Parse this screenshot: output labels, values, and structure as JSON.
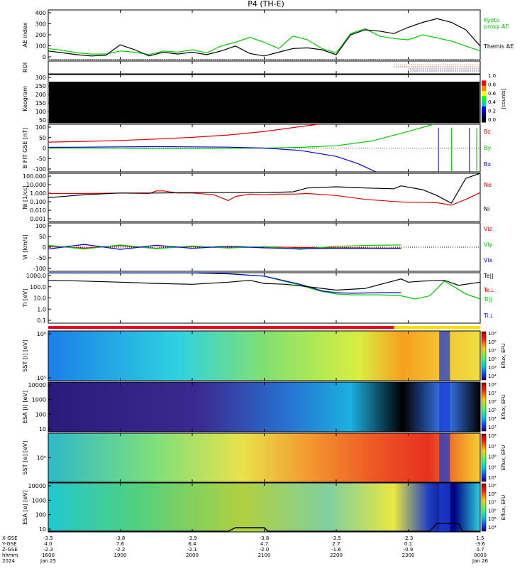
{
  "chart_data": {
    "type": "line",
    "title": "P4 (TH-E)",
    "x_tick_positions_data": [
      0,
      1,
      2,
      3,
      4,
      5,
      6
    ],
    "panels": [
      {
        "id": "ae",
        "ylabel": "AE index",
        "yticks": [
          "400",
          "300",
          "200",
          "100",
          "0"
        ],
        "ylim": [
          0,
          400
        ],
        "legend": [
          {
            "label": "Kyoto",
            "color": "#00cc00"
          },
          {
            "label": "proxy AE",
            "color": "#00cc00"
          },
          {
            "label": "Themis AE",
            "color": "#000000"
          }
        ],
        "series": [
          {
            "name": "Kyoto proxy AE",
            "color": "#00cc00",
            "x": [
              0,
              0.2,
              0.4,
              0.6,
              0.8,
              1.0,
              1.2,
              1.4,
              1.6,
              1.8,
              2.0,
              2.2,
              2.4,
              2.6,
              2.8,
              3.0,
              3.2,
              3.4,
              3.6,
              3.8,
              4.0,
              4.2,
              4.4,
              4.6,
              4.8,
              5.0,
              5.2,
              5.4,
              5.6,
              5.8,
              6.0
            ],
            "y": [
              90,
              75,
              55,
              45,
              45,
              70,
              60,
              40,
              70,
              60,
              80,
              55,
              110,
              140,
              180,
              140,
              90,
              190,
              160,
              90,
              55,
              210,
              250,
              190,
              170,
              160,
              200,
              175,
              150,
              110,
              70
            ]
          },
          {
            "name": "Themis AE",
            "color": "#000000",
            "x": [
              0,
              0.2,
              0.4,
              0.6,
              0.8,
              1.0,
              1.2,
              1.4,
              1.6,
              1.8,
              2.0,
              2.2,
              2.4,
              2.6,
              2.8,
              3.0,
              3.2,
              3.4,
              3.6,
              3.8,
              4.0,
              4.2,
              4.4,
              4.6,
              4.8,
              5.0,
              5.2,
              5.4,
              5.6,
              5.8,
              6.0
            ],
            "y": [
              70,
              55,
              40,
              30,
              35,
              120,
              80,
              30,
              60,
              45,
              60,
              40,
              70,
              110,
              50,
              30,
              60,
              90,
              95,
              80,
              40,
              200,
              240,
              230,
              210,
              260,
              300,
              330,
              300,
              240,
              110
            ]
          }
        ]
      },
      {
        "id": "roi",
        "ylabel": "ROI",
        "yticks": []
      },
      {
        "id": "keogram",
        "ylabel": "Keogram",
        "yticks": [
          "300",
          "250",
          "200",
          "150",
          "100",
          "50"
        ],
        "colorbar": {
          "label": "[counts]",
          "ticks": [
            "1.0",
            "0.8",
            "0.6",
            "0.4",
            "0.2",
            "0.0"
          ]
        }
      },
      {
        "id": "bfield",
        "ylabel": "B FIT GSE [nT]",
        "yticks": [
          "100",
          "50",
          "0",
          "-50",
          "-100"
        ],
        "ylim": [
          -100,
          100
        ],
        "legend": [
          {
            "label": "Bz",
            "color": "#dd0000"
          },
          {
            "label": "By",
            "color": "#00cc00"
          },
          {
            "label": "Bx",
            "color": "#0000cc"
          }
        ],
        "series": [
          {
            "name": "Bz",
            "color": "#dd0000",
            "x": [
              0,
              0.5,
              1.0,
              1.5,
              2.0,
              2.5,
              3.0,
              3.5,
              3.75
            ],
            "y": [
              25,
              28,
              32,
              38,
              45,
              55,
              70,
              90,
              100
            ]
          },
          {
            "name": "By",
            "color": "#00cc00",
            "x": [
              0,
              0.5,
              1.0,
              1.5,
              2.0,
              2.5,
              3.0,
              3.5,
              4.0,
              4.5,
              5.0,
              5.35
            ],
            "y": [
              0,
              0,
              -1,
              -2,
              -2,
              -1,
              0,
              3,
              10,
              30,
              70,
              100
            ]
          },
          {
            "name": "Bx",
            "color": "#0000cc",
            "x": [
              0,
              0.5,
              1.0,
              1.5,
              2.0,
              2.5,
              3.0,
              3.5,
              4.0,
              4.3,
              4.55
            ],
            "y": [
              3,
              4,
              5,
              6,
              5,
              4,
              0,
              -10,
              -35,
              -65,
              -100
            ]
          }
        ]
      },
      {
        "id": "density",
        "ylabel": "Ni [1/cc]",
        "yticks": [
          "100.000",
          "10.000",
          "1.000",
          "0.100",
          "0.010",
          "0.001"
        ],
        "ylim_log10": [
          -3,
          2
        ],
        "legend": [
          {
            "label": "Ne",
            "color": "#dd0000"
          },
          {
            "label": "Ni",
            "color": "#000000"
          }
        ],
        "series": [
          {
            "name": "Ne",
            "color": "#dd0000",
            "x": [
              0,
              0.5,
              1.0,
              1.4,
              1.5,
              1.6,
              1.8,
              2.0,
              2.3,
              2.4,
              2.5,
              2.6,
              2.8,
              3.0,
              3.2,
              3.4,
              3.6,
              4.0,
              4.4,
              4.8,
              5.0,
              5.2,
              5.4,
              5.6,
              5.8,
              6.0
            ],
            "y": [
              0.8,
              0.8,
              0.9,
              0.8,
              1.5,
              1.5,
              0.9,
              0.9,
              0.6,
              0.3,
              0.15,
              0.4,
              0.7,
              0.6,
              0.7,
              0.7,
              0.8,
              0.5,
              0.2,
              0.12,
              0.1,
              0.1,
              0.09,
              0.05,
              0.2,
              1.0
            ]
          },
          {
            "name": "Ni",
            "color": "#000000",
            "x": [
              0,
              0.5,
              1.0,
              1.5,
              2.0,
              2.5,
              3.0,
              3.4,
              3.6,
              4.0,
              4.4,
              4.8,
              4.9,
              5.2,
              5.4,
              5.6,
              5.8,
              6.0
            ],
            "y": [
              0.3,
              0.6,
              0.9,
              0.9,
              1.0,
              1.0,
              1.0,
              1.2,
              3.0,
              4.0,
              3.0,
              2.5,
              5.0,
              2.0,
              0.5,
              0.08,
              30,
              100
            ]
          }
        ]
      },
      {
        "id": "velocity",
        "ylabel": "Vi [km/s]",
        "yticks": [
          "100",
          "50",
          "0",
          "-50",
          "-100"
        ],
        "ylim": [
          -130,
          130
        ],
        "legend": [
          {
            "label": "Viz",
            "color": "#dd0000"
          },
          {
            "label": "Viy",
            "color": "#00cc00"
          },
          {
            "label": "Vix",
            "color": "#0000cc"
          }
        ],
        "series": [
          {
            "name": "Viz",
            "color": "#dd0000",
            "x": [
              0,
              0.5,
              1.0,
              1.5,
              2.0,
              2.5,
              3.0,
              3.5,
              4.0,
              4.5,
              4.9
            ],
            "y": [
              5,
              -5,
              8,
              -6,
              4,
              -3,
              2,
              -2,
              -3,
              -5,
              -5
            ]
          },
          {
            "name": "Viy",
            "color": "#00cc00",
            "x": [
              0,
              0.5,
              1.0,
              1.5,
              2.0,
              2.5,
              3.0,
              3.5,
              4.0,
              4.5,
              4.9
            ],
            "y": [
              10,
              -10,
              12,
              -8,
              6,
              -5,
              3,
              -12,
              5,
              10,
              12
            ]
          },
          {
            "name": "Vix",
            "color": "#0000cc",
            "x": [
              0,
              0.5,
              1.0,
              1.5,
              2.0,
              2.5,
              3.0,
              3.5,
              4.0,
              4.5,
              4.9
            ],
            "y": [
              -10,
              15,
              -12,
              10,
              -6,
              5,
              -4,
              -8,
              -6,
              -6,
              -7
            ]
          }
        ]
      },
      {
        "id": "temperature",
        "ylabel": "Ti [eV]",
        "yticks": [
          "1000.0",
          "100.0",
          "10.0",
          "1.0",
          "0.1"
        ],
        "ylim_log10": [
          -1.3,
          3.5
        ],
        "legend": [
          {
            "label": "Te||",
            "color": "#000000"
          },
          {
            "label": "Te⊥",
            "color": "#dd0000"
          },
          {
            "label": "Ti||",
            "color": "#00cc00"
          },
          {
            "label": "Ti⊥",
            "color": "#0000cc"
          }
        ],
        "series": [
          {
            "name": "Ti||",
            "color": "#00cc00",
            "x": [
              0,
              0.5,
              1.0,
              1.5,
              2.0,
              2.5,
              3.0,
              3.5,
              3.8,
              4.0,
              4.2,
              4.6,
              4.9,
              5.1,
              5.3,
              5.5,
              5.6,
              5.8,
              6.0
            ],
            "y": [
              3000,
              3000,
              3000,
              3000,
              3000,
              2500,
              1500,
              200,
              50,
              30,
              25,
              25,
              20,
              10,
              20,
              500,
              200,
              30,
              10
            ]
          },
          {
            "name": "Ti⊥",
            "color": "#0000cc",
            "x": [
              0,
              0.5,
              1.0,
              1.5,
              2.0,
              2.5,
              3.0,
              3.5,
              3.8,
              4.0,
              4.2,
              4.6,
              4.9
            ],
            "y": [
              3000,
              3000,
              3000,
              3000,
              3000,
              2500,
              1500,
              250,
              60,
              40,
              35,
              40,
              40
            ]
          },
          {
            "name": "Te||",
            "color": "#000000",
            "x": [
              0,
              0.5,
              1.0,
              1.5,
              2.0,
              2.5,
              2.8,
              3.0,
              3.3,
              3.6,
              4.0,
              4.4,
              4.9,
              5.0,
              5.2,
              5.5,
              5.7,
              6.0
            ],
            "y": [
              600,
              500,
              400,
              300,
              250,
              400,
              600,
              300,
              250,
              150,
              70,
              100,
              800,
              400,
              500,
              600,
              200,
              400
            ]
          }
        ]
      },
      {
        "id": "sst_i",
        "ylabel": "SST [i] [eV]",
        "yticks": [
          "10⁶",
          "10⁵"
        ],
        "colorbar": {
          "label": "Eflux, EFU",
          "ticks": [
            "10⁹",
            "10⁸",
            "10⁷",
            "10⁶",
            "10⁵",
            "10⁴"
          ]
        }
      },
      {
        "id": "esa_i",
        "ylabel": "ESA [i] [eV]",
        "yticks": [
          "10000",
          "1000",
          "100",
          "10"
        ],
        "colorbar": {
          "label": "Eflux, EFU",
          "ticks": [
            "10⁸",
            "10⁷",
            "10⁶",
            "10⁵",
            "10⁴",
            "10³"
          ]
        }
      },
      {
        "id": "sst_e",
        "ylabel": "SST [e] [eV]",
        "yticks": [
          "10⁵"
        ],
        "colorbar": {
          "label": "Eflux, EFU",
          "ticks": [
            "10⁸",
            "10⁷",
            "10⁶",
            "10⁵",
            "10⁴"
          ]
        }
      },
      {
        "id": "esa_e",
        "ylabel": "ESA [e] [eV]",
        "yticks": [
          "10000",
          "1000",
          "100",
          "10"
        ],
        "colorbar": {
          "label": "Eflux, EFU",
          "ticks": [
            "10⁹",
            "10⁸",
            "10⁷",
            "10⁶",
            "10⁵",
            "10⁴"
          ]
        }
      }
    ],
    "x_axis": {
      "row_labels": [
        "X-GSE",
        "Y-GSE",
        "Z-GSE",
        "hhmm",
        "2024"
      ],
      "columns": [
        {
          "values": [
            "-3.5",
            "4.0",
            "-2.3",
            "1600",
            "Jan 25"
          ]
        },
        {
          "values": [
            "-3.8",
            "7.6",
            "-2.2",
            "1900",
            ""
          ]
        },
        {
          "values": [
            "-3.9",
            "6.4",
            "-2.1",
            "2000",
            ""
          ]
        },
        {
          "values": [
            "-3.8",
            "4.7",
            "-2.0",
            "2100",
            ""
          ]
        },
        {
          "values": [
            "-3.5",
            "2.7",
            "-1.6",
            "2200",
            ""
          ]
        },
        {
          "values": [
            "-2.3",
            "0.1",
            "-0.9",
            "2300",
            ""
          ]
        },
        {
          "values": [
            "1.5",
            "-3.6",
            "0.7",
            "0000",
            "Jan 26"
          ]
        }
      ]
    }
  }
}
